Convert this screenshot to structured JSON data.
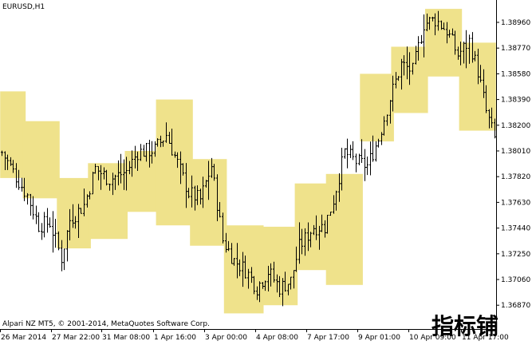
{
  "window": {
    "title": "EURUSD,H1",
    "copyright": "Alpari NZ MT5, © 2001-2014, MetaQuotes Software Corp.",
    "watermark": "指标铺"
  },
  "colors": {
    "background": "#ffffff",
    "bars": "#000000",
    "box_fill": "#efe28b",
    "axis": "#000000"
  },
  "chart_data": {
    "type": "ohlc_bar",
    "symbol": "EURUSD",
    "timeframe": "H1",
    "title": "EURUSD,H1",
    "y_axis": {
      "ticks": [
        "1.38960",
        "1.38770",
        "1.38580",
        "1.38390",
        "1.38200",
        "1.38010",
        "1.37820",
        "1.37630",
        "1.37440",
        "1.37250",
        "1.37060",
        "1.36870"
      ],
      "range": [
        1.3679,
        1.3908
      ]
    },
    "x_axis": {
      "ticks": [
        "26 Mar 2014",
        "27 Mar 22:00",
        "31 Mar 08:00",
        "1 Apr 16:00",
        "3 Apr 00:00",
        "4 Apr 08:00",
        "7 Apr 17:00",
        "9 Apr 01:00",
        "10 Apr 09:00",
        "11 Apr 17:00"
      ]
    },
    "range_boxes": [
      {
        "start": 0,
        "end": 8,
        "low": 1.3781,
        "high": 1.3845
      },
      {
        "start": 8,
        "end": 20,
        "low": 1.3766,
        "high": 1.3823
      },
      {
        "start": 20,
        "end": 31,
        "low": 1.3729,
        "high": 1.3781
      },
      {
        "start": 31,
        "end": 44,
        "low": 1.3736,
        "high": 1.3792
      },
      {
        "start": 44,
        "end": 55,
        "low": 1.3756,
        "high": 1.3801
      },
      {
        "start": 55,
        "end": 67,
        "low": 1.3746,
        "high": 1.3839
      },
      {
        "start": 67,
        "end": 79,
        "low": 1.3731,
        "high": 1.3795
      },
      {
        "start": 79,
        "end": 92,
        "low": 1.3681,
        "high": 1.3746
      },
      {
        "start": 92,
        "end": 104,
        "low": 1.3687,
        "high": 1.3745
      },
      {
        "start": 104,
        "end": 115,
        "low": 1.3713,
        "high": 1.3777
      },
      {
        "start": 115,
        "end": 127,
        "low": 1.3702,
        "high": 1.3784
      },
      {
        "start": 127,
        "end": 138,
        "low": 1.3808,
        "high": 1.3858
      },
      {
        "start": 138,
        "end": 150,
        "low": 1.3829,
        "high": 1.3878
      },
      {
        "start": 150,
        "end": 162,
        "low": 1.3856,
        "high": 1.3906
      },
      {
        "start": 162,
        "end": 174,
        "low": 1.3816,
        "high": 1.3881
      }
    ],
    "close_path": [
      {
        "i": 0,
        "v": 1.38
      },
      {
        "i": 5,
        "v": 1.3782
      },
      {
        "i": 9,
        "v": 1.3768
      },
      {
        "i": 13,
        "v": 1.3746
      },
      {
        "i": 17,
        "v": 1.3748
      },
      {
        "i": 21,
        "v": 1.3722
      },
      {
        "i": 24,
        "v": 1.375
      },
      {
        "i": 29,
        "v": 1.3761
      },
      {
        "i": 33,
        "v": 1.3788
      },
      {
        "i": 38,
        "v": 1.378
      },
      {
        "i": 44,
        "v": 1.3786
      },
      {
        "i": 48,
        "v": 1.38
      },
      {
        "i": 54,
        "v": 1.3802
      },
      {
        "i": 58,
        "v": 1.3813
      },
      {
        "i": 62,
        "v": 1.3792
      },
      {
        "i": 66,
        "v": 1.377
      },
      {
        "i": 70,
        "v": 1.3765
      },
      {
        "i": 74,
        "v": 1.379
      },
      {
        "i": 78,
        "v": 1.3735
      },
      {
        "i": 82,
        "v": 1.372
      },
      {
        "i": 86,
        "v": 1.3713
      },
      {
        "i": 90,
        "v": 1.37
      },
      {
        "i": 94,
        "v": 1.3712
      },
      {
        "i": 98,
        "v": 1.37
      },
      {
        "i": 102,
        "v": 1.3705
      },
      {
        "i": 105,
        "v": 1.373
      },
      {
        "i": 110,
        "v": 1.3745
      },
      {
        "i": 114,
        "v": 1.3745
      },
      {
        "i": 117,
        "v": 1.3765
      },
      {
        "i": 121,
        "v": 1.38
      },
      {
        "i": 125,
        "v": 1.3793
      },
      {
        "i": 129,
        "v": 1.379
      },
      {
        "i": 133,
        "v": 1.381
      },
      {
        "i": 137,
        "v": 1.384
      },
      {
        "i": 141,
        "v": 1.3865
      },
      {
        "i": 145,
        "v": 1.386
      },
      {
        "i": 149,
        "v": 1.3895
      },
      {
        "i": 153,
        "v": 1.3898
      },
      {
        "i": 157,
        "v": 1.389
      },
      {
        "i": 161,
        "v": 1.3872
      },
      {
        "i": 165,
        "v": 1.3882
      },
      {
        "i": 168,
        "v": 1.386
      },
      {
        "i": 171,
        "v": 1.383
      },
      {
        "i": 174,
        "v": 1.381
      }
    ],
    "bar_count": 175
  }
}
